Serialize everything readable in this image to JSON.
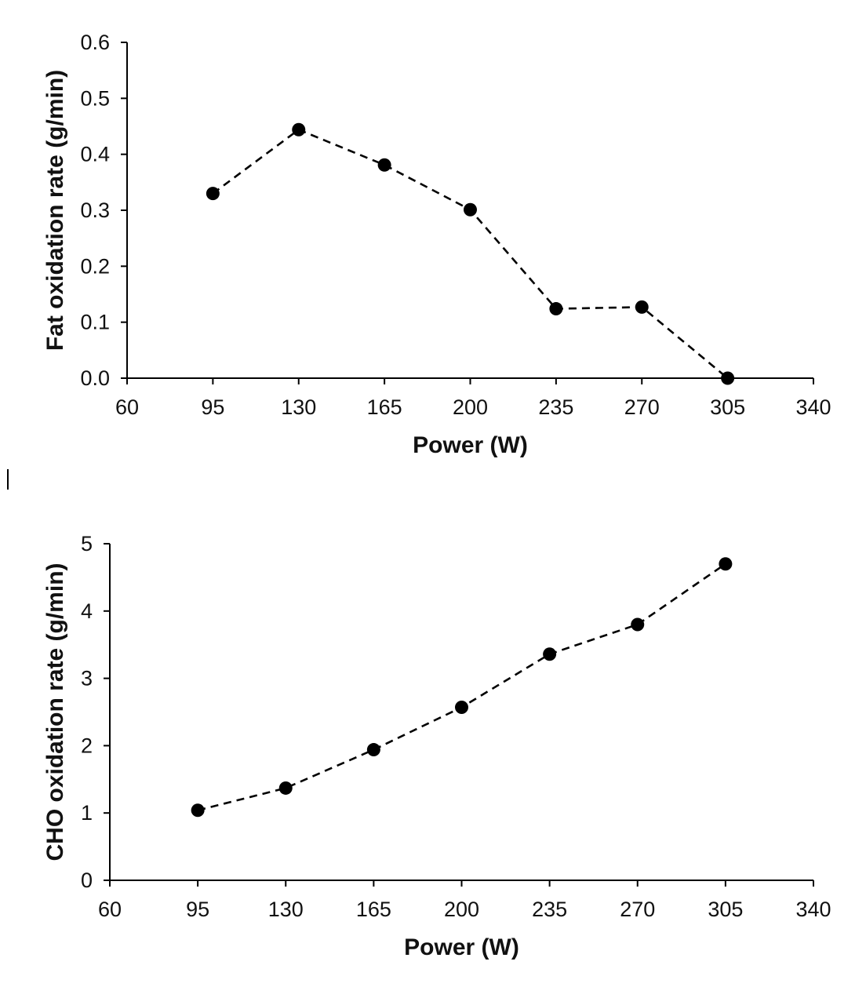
{
  "chart_data": [
    {
      "type": "line",
      "title": "",
      "xlabel": "Power (W)",
      "ylabel": "Fat oxidation rate (g/min)",
      "xlim": [
        60,
        340
      ],
      "ylim": [
        0,
        0.6
      ],
      "x_ticks": [
        60,
        95,
        130,
        165,
        200,
        235,
        270,
        305,
        340
      ],
      "x_tick_labels": [
        "60",
        "95",
        "130",
        "165",
        "200",
        "235",
        "270",
        "305",
        "340"
      ],
      "y_ticks": [
        0,
        0.1,
        0.2,
        0.3,
        0.4,
        0.5,
        0.6
      ],
      "y_tick_labels": [
        "0.0",
        "0.1",
        "0.2",
        "0.3",
        "0.4",
        "0.5",
        "0.6"
      ],
      "grid": false,
      "line_style": "dashed",
      "marker": "circle",
      "series": [
        {
          "x": [
            95,
            130,
            165,
            200,
            235,
            270,
            305
          ],
          "values": [
            0.33,
            0.444,
            0.381,
            0.301,
            0.124,
            0.127,
            0.0
          ]
        }
      ]
    },
    {
      "type": "line",
      "title": "",
      "xlabel": "Power (W)",
      "ylabel": "CHO oxidation rate (g/min)",
      "xlim": [
        60,
        340
      ],
      "ylim": [
        0,
        5
      ],
      "x_ticks": [
        60,
        95,
        130,
        165,
        200,
        235,
        270,
        305,
        340
      ],
      "x_tick_labels": [
        "60",
        "95",
        "130",
        "165",
        "200",
        "235",
        "270",
        "305",
        "340"
      ],
      "y_ticks": [
        0,
        1,
        2,
        3,
        4,
        5
      ],
      "y_tick_labels": [
        "0",
        "1",
        "2",
        "3",
        "4",
        "5"
      ],
      "grid": false,
      "line_style": "dashed",
      "marker": "circle",
      "series": [
        {
          "x": [
            95,
            130,
            165,
            200,
            235,
            270,
            305
          ],
          "values": [
            1.04,
            1.37,
            1.94,
            2.57,
            3.36,
            3.8,
            4.7
          ]
        }
      ]
    }
  ]
}
